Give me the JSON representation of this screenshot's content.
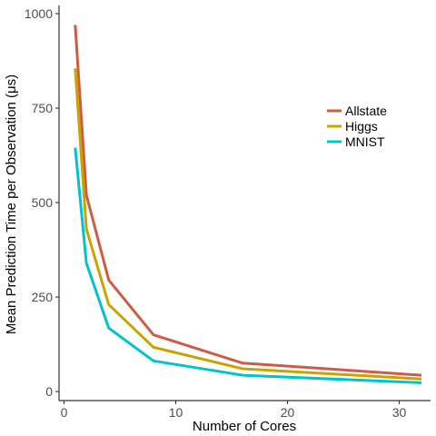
{
  "chart_data": {
    "type": "line",
    "xlabel": "Number of Cores",
    "ylabel": "Mean Prediction Time per Observation (μs)",
    "xlim": [
      0,
      32
    ],
    "ylim": [
      0,
      1000
    ],
    "xticks": [
      0,
      10,
      20,
      30
    ],
    "yticks": [
      0,
      250,
      500,
      750,
      1000
    ],
    "grid": false,
    "legend_position": "right",
    "x": [
      1,
      2,
      4,
      8,
      16,
      32
    ],
    "series": [
      {
        "name": "Allstate",
        "color": "#cd5c45",
        "values": [
          970,
          520,
          295,
          150,
          75,
          43
        ]
      },
      {
        "name": "Higgs",
        "color": "#c9a400",
        "values": [
          855,
          430,
          230,
          117,
          60,
          33
        ]
      },
      {
        "name": "MNIST",
        "color": "#00c3cb",
        "values": [
          645,
          340,
          168,
          81,
          43,
          23
        ]
      }
    ]
  }
}
